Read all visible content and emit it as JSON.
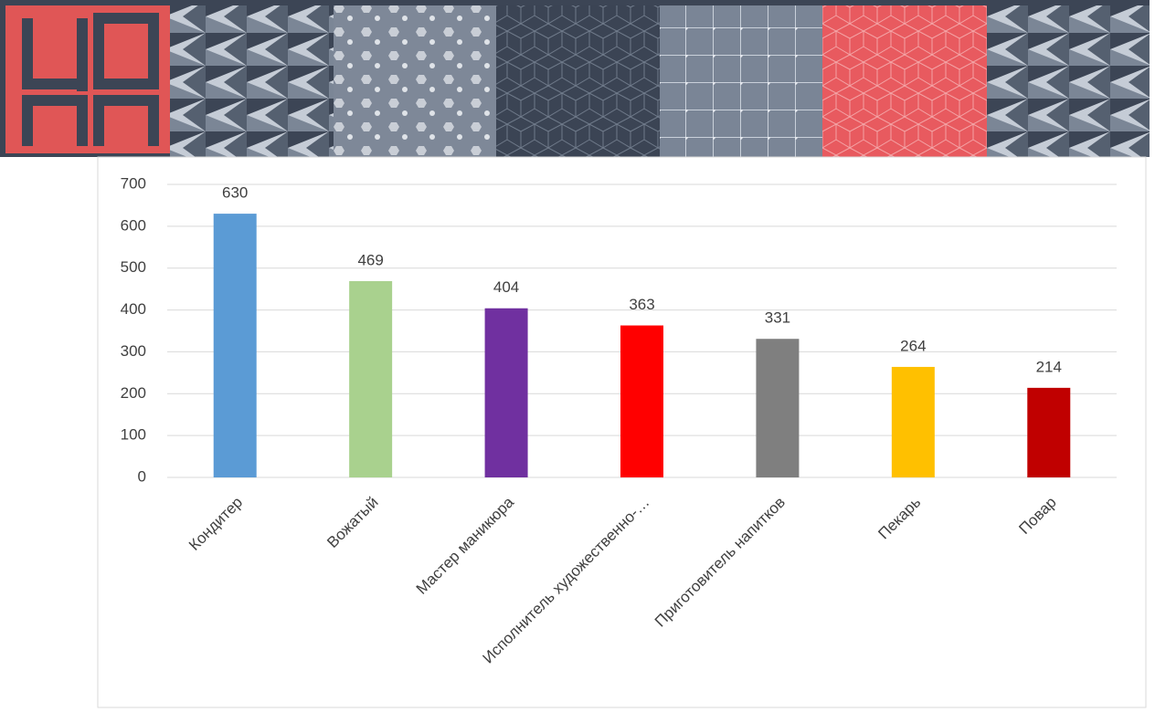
{
  "chart_data": {
    "type": "bar",
    "categories": [
      "Кондитер",
      "Вожатый",
      "Мастер маникюра",
      "Исполнитель художественно-…",
      "Приготовитель напитков",
      "Пекарь",
      "Повар"
    ],
    "values": [
      630,
      469,
      404,
      363,
      331,
      264,
      214
    ],
    "colors": [
      "#5b9bd5",
      "#a9d18e",
      "#7030a0",
      "#ff0000",
      "#7f7f7f",
      "#ffc000",
      "#c00000"
    ],
    "ylim": [
      0,
      700
    ],
    "yticks": [
      0,
      100,
      200,
      300,
      400,
      500,
      600,
      700
    ],
    "grid": true
  }
}
